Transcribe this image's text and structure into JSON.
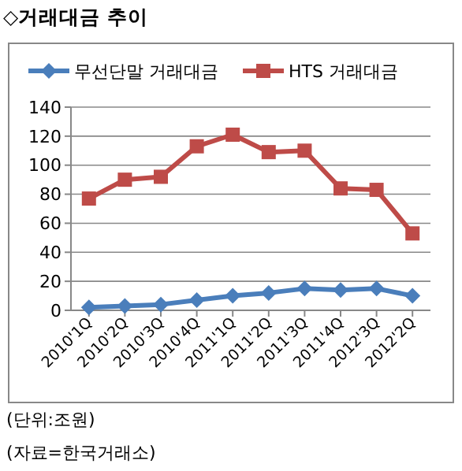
{
  "chart_data": {
    "type": "line",
    "title": "◇거래대금 추이",
    "categories": [
      "2010'1Q",
      "2010'2Q",
      "2010'3Q",
      "2010'4Q",
      "2011'1Q",
      "2011'2Q",
      "2011'3Q",
      "2011'4Q",
      "2012'3Q",
      "2012'2Q"
    ],
    "series": [
      {
        "name": "무선단말 거래대금",
        "color": "#4a7ebb",
        "marker": "diamond",
        "values": [
          2,
          3,
          4,
          7,
          10,
          12,
          15,
          14,
          15,
          10
        ]
      },
      {
        "name": "HTS 거래대금",
        "color": "#be4b48",
        "marker": "square",
        "values": [
          77,
          90,
          92,
          113,
          121,
          109,
          110,
          84,
          83,
          53
        ]
      }
    ],
    "ylim": [
      0,
      140
    ],
    "yticks": [
      0,
      20,
      40,
      60,
      80,
      100,
      120,
      140
    ],
    "grid": "y",
    "legend": "top",
    "annotations": [
      "(단위:조원)",
      "(자료=한국거래소)"
    ]
  }
}
